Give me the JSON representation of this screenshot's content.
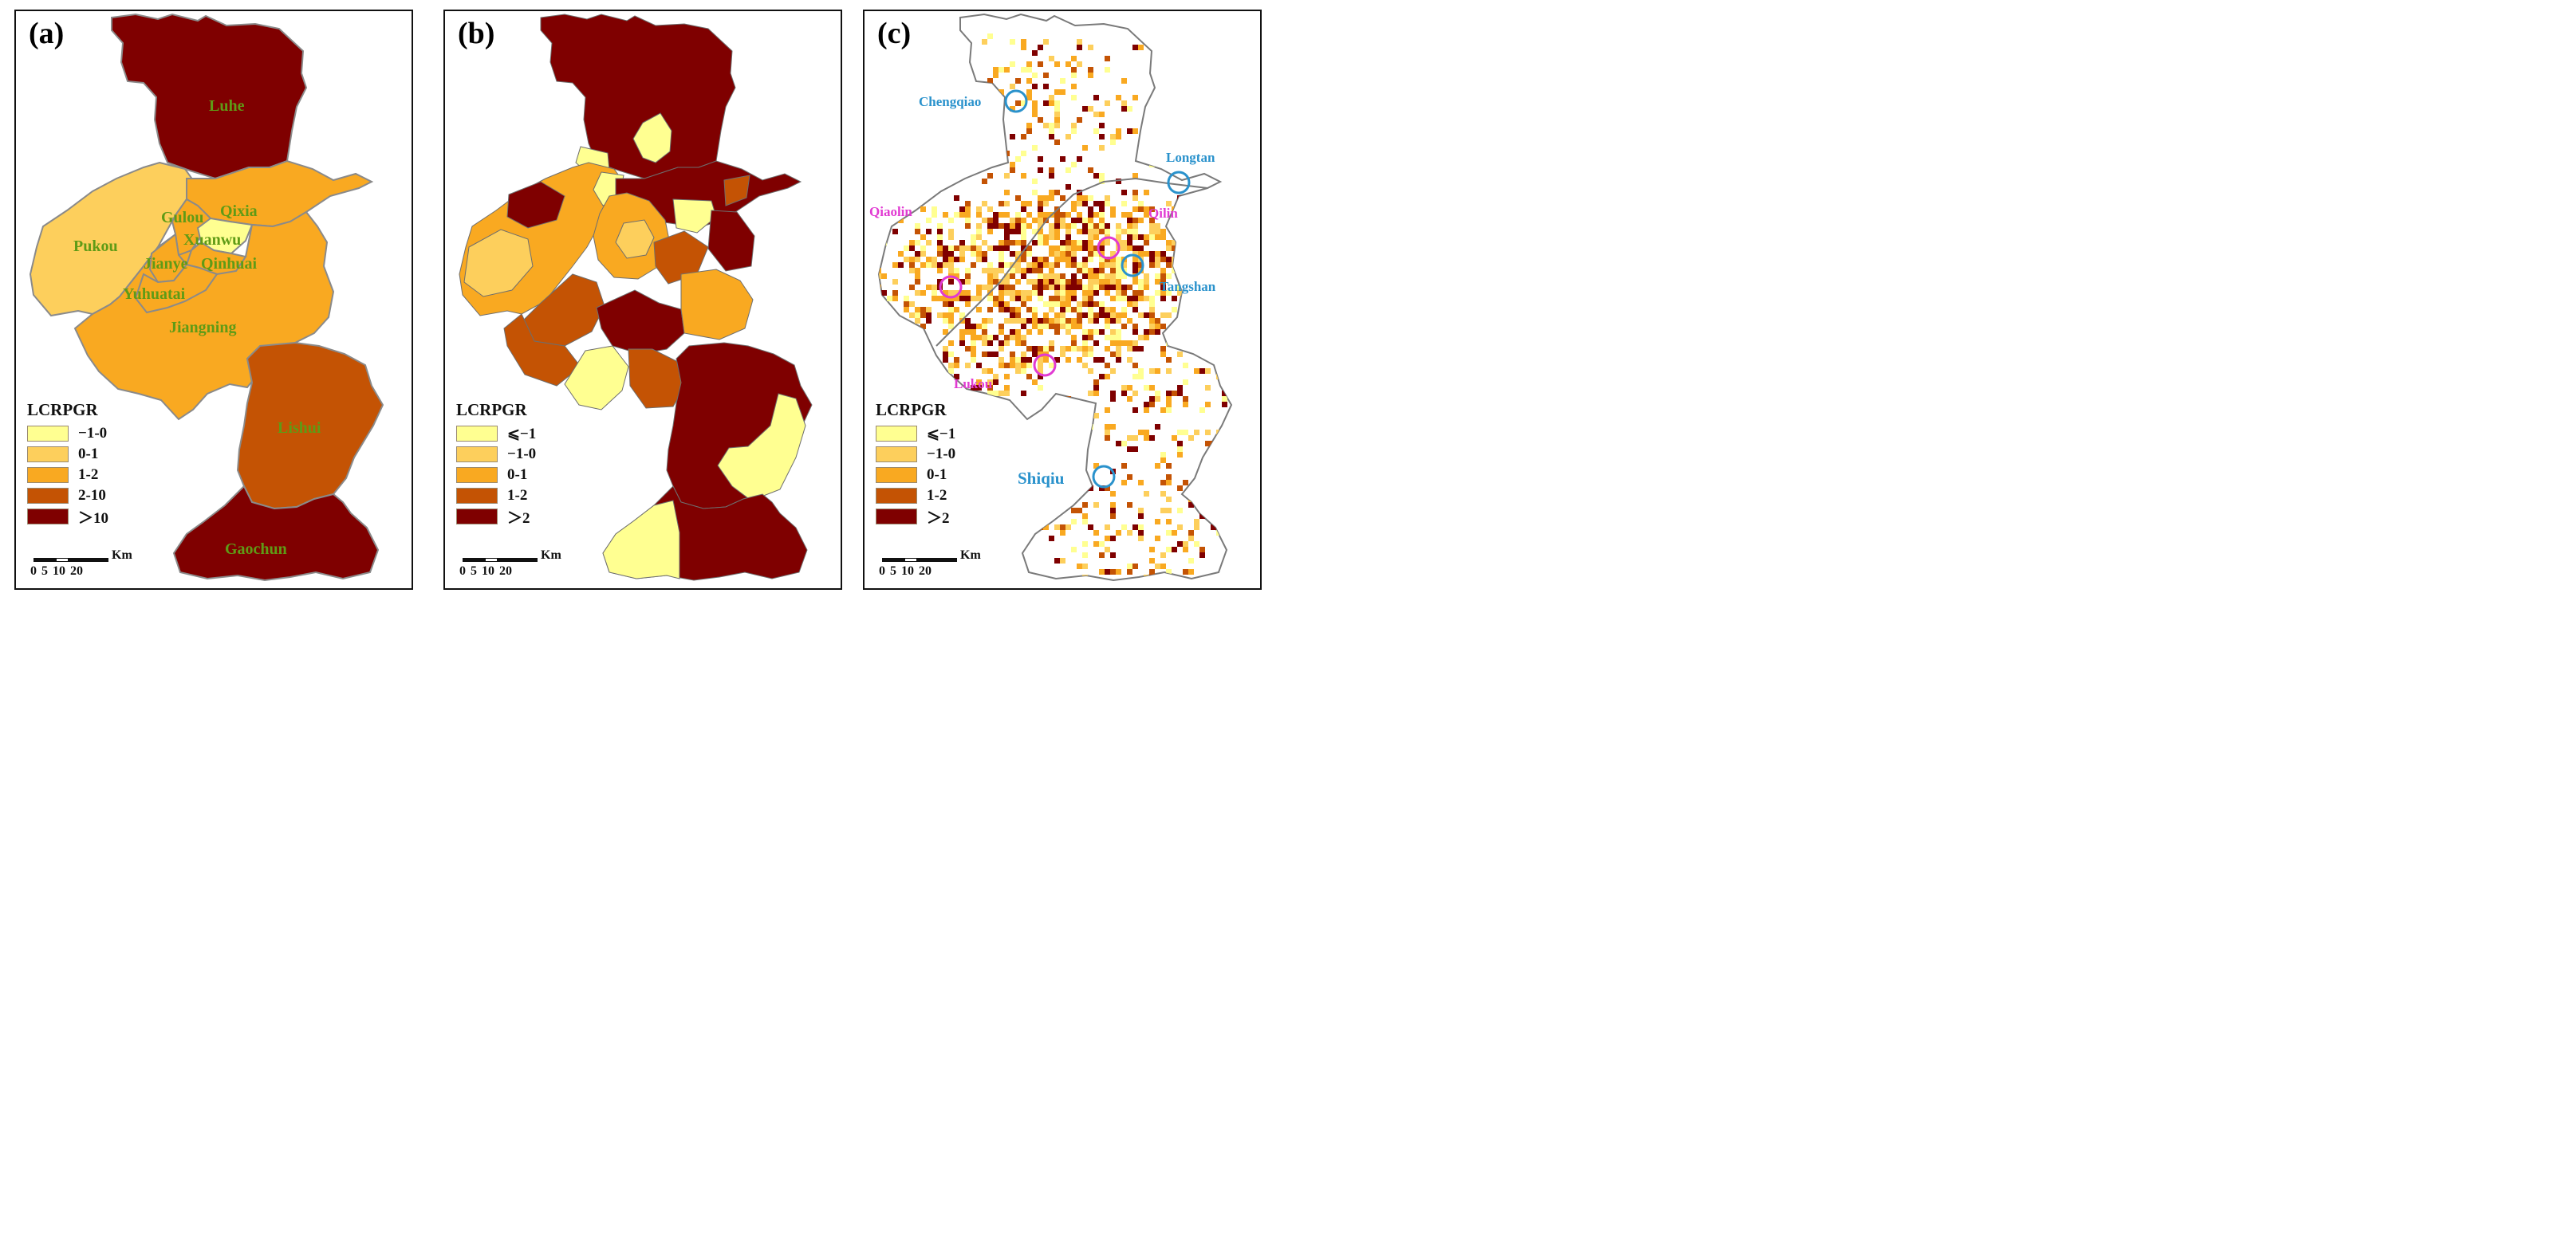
{
  "panels": {
    "a": {
      "label": "(a)",
      "legend_title": "LCRPGR",
      "legend": [
        {
          "label": "−1-0",
          "color": "#ffff91"
        },
        {
          "label": "0-1",
          "color": "#fdcf5c"
        },
        {
          "label": "1-2",
          "color": "#f9a921"
        },
        {
          "label": "2-10",
          "color": "#c45304"
        },
        {
          "label": "＞10",
          "color": "#7f0000"
        }
      ],
      "districts": {
        "luhe": "Luhe",
        "gulou": "Gulou",
        "qixia": "Qixia",
        "xuanwu": "Xuanwu",
        "pukou": "Pukou",
        "jianye": "Jianye",
        "qinhuai": "Qinhuai",
        "yuhuatai": "Yuhuatai",
        "jiangning": "Jiangning",
        "lishui": "Lishui",
        "gaochun": "Gaochun"
      }
    },
    "b": {
      "label": "(b)",
      "legend_title": "LCRPGR",
      "legend": [
        {
          "label": "⩽−1",
          "color": "#ffff91"
        },
        {
          "label": "−1-0",
          "color": "#fdcf5c"
        },
        {
          "label": "0-1",
          "color": "#f9a921"
        },
        {
          "label": "1-2",
          "color": "#c45304"
        },
        {
          "label": "＞2",
          "color": "#7f0000"
        }
      ]
    },
    "c": {
      "label": "(c)",
      "legend_title": "LCRPGR",
      "legend": [
        {
          "label": "⩽−1",
          "color": "#ffff91"
        },
        {
          "label": "−1-0",
          "color": "#fdcf5c"
        },
        {
          "label": "0-1",
          "color": "#f9a921"
        },
        {
          "label": "1-2",
          "color": "#c45304"
        },
        {
          "label": "＞2",
          "color": "#7f0000"
        }
      ],
      "towns": {
        "chengqiao": "Chengqiao",
        "longtan": "Longtan",
        "qiaolin": "Qiaolin",
        "qilin": "Qilin",
        "tangshan": "Tangshan",
        "lukou": "Lukou",
        "shiqiu": "Shiqiu"
      }
    }
  },
  "scale": {
    "unit": "Km",
    "ticks": "0 5 10   20"
  }
}
